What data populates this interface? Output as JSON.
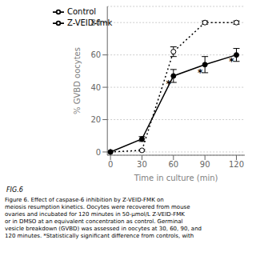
{
  "chart_data": {
    "type": "line",
    "xlabel": "Time in culture (min)",
    "ylabel": "% GVBD oocytes",
    "x": [
      0,
      30,
      60,
      90,
      120
    ],
    "series": [
      {
        "name": "Control",
        "color": "#000000",
        "values": [
          0,
          1,
          62,
          80,
          80
        ],
        "errors": [
          0,
          0.5,
          3,
          1.0,
          1.0
        ],
        "marker": "open_circle",
        "line_style": "dotted"
      },
      {
        "name": "Z-VEID-fmk",
        "color": "#000000",
        "values": [
          0,
          8,
          47,
          54,
          60
        ],
        "errors": [
          0,
          1.5,
          4,
          5,
          4
        ],
        "marker": "circle",
        "line_style": "solid"
      }
    ],
    "xlim": [
      -3,
      128
    ],
    "ylim": [
      -2,
      90
    ],
    "xticks": [
      0,
      30,
      60,
      90,
      120
    ],
    "yticks": [
      0,
      20,
      40,
      60,
      80
    ],
    "grid": true,
    "legend": "upper left",
    "annotations": [
      {
        "text": "*",
        "x": 60,
        "y": 42
      },
      {
        "text": "*",
        "x": 90,
        "y": 49
      },
      {
        "text": "*",
        "x": 120,
        "y": 56
      }
    ],
    "fig_label": "FIG.6",
    "caption": "Figure 6.  Effect of caspase-6 inhibition by Z-VEID-FMK on\nmeiosis resumption kinetics. Oocytes were recovered from mouse\novaries and incubated for 120 minutes in 50-μmol/L Z-VEID-FMK\nor in DMSO at an equivalent concentration as control. Germinal\nvesicle breakdown (GVBD) was assessed in oocytes at 30, 60, 90, and\n120 minutes. *Statistically significant difference from controls, with"
  }
}
